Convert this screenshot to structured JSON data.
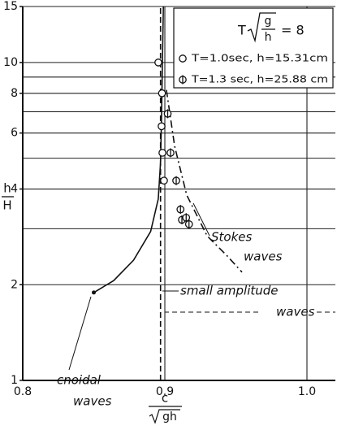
{
  "chart_data": {
    "type": "scatter",
    "log_y": true,
    "xlim": [
      0.8,
      1.02
    ],
    "ylim": [
      1,
      15
    ],
    "xticks": [
      0.8,
      0.9,
      {
        "value": 1.0,
        "label": "1.0"
      }
    ],
    "yticks": [
      1,
      2,
      4,
      6,
      8,
      10,
      15
    ],
    "y_gridlines": [
      1,
      2,
      3,
      4,
      5,
      6,
      7,
      8,
      9,
      10,
      15
    ],
    "xlabel": {
      "num": "c",
      "den": "gh"
    },
    "ylabel": {
      "num": "h",
      "den": "H"
    },
    "legend_title": {
      "prefix": "T",
      "num": "g",
      "den": "h",
      "suffix": "= 8"
    },
    "series": [
      {
        "name": "T=1.0sec, h=15.31cm",
        "marker": "open",
        "color": "#111",
        "x": [
          0.8954,
          0.898,
          0.8977,
          0.8983,
          0.8994
        ],
        "values": [
          10,
          8.0,
          6.3,
          5.2,
          4.25
        ]
      },
      {
        "name": "T=1.3 sec, h=25.88 cm",
        "marker": "phi",
        "color": "#111",
        "x": [
          0.902,
          0.904,
          0.908,
          0.911,
          0.912,
          0.915,
          0.917
        ],
        "values": [
          6.9,
          5.2,
          4.25,
          3.45,
          3.2,
          3.25,
          3.1
        ]
      }
    ],
    "curves": [
      {
        "label_lines": [
          "cnoidal",
          "waves"
        ],
        "style": "solid",
        "x": [
          0.85,
          0.864,
          0.878,
          0.89,
          0.8954,
          0.897,
          0.8977,
          0.8983,
          0.899
        ],
        "y": [
          1.89,
          2.06,
          2.39,
          2.94,
          3.72,
          4.84,
          6.9,
          10,
          15
        ]
      },
      {
        "label_lines": [
          "Stokes",
          "waves"
        ],
        "style": "dashdot",
        "x": [
          0.9011,
          0.9069,
          0.9154,
          0.9297,
          0.944,
          0.9543
        ],
        "y": [
          8.2,
          5.45,
          3.83,
          2.85,
          2.46,
          2.19
        ]
      },
      {
        "label_lines": [
          "small amplitude",
          "waves"
        ],
        "style": "dashed",
        "x": [
          0.897,
          0.897
        ],
        "y": [
          1,
          15
        ]
      }
    ]
  }
}
